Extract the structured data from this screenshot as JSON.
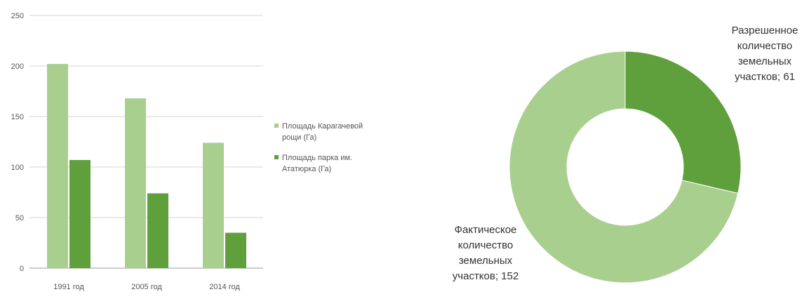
{
  "chart_data": [
    {
      "type": "bar",
      "categories": [
        "1991 год",
        "2005 год",
        "2014 год"
      ],
      "series": [
        {
          "name": "Площадь Карагачевой рощи (Га)",
          "values": [
            202,
            168,
            124
          ],
          "color": "#a9cf8f"
        },
        {
          "name": "Площадь парка им. Ататюрка (Га)",
          "values": [
            107,
            74,
            35
          ],
          "color": "#5fa03c"
        }
      ],
      "ylim": [
        0,
        250
      ],
      "yticks": [
        0,
        50,
        100,
        150,
        200,
        250
      ],
      "grid": true,
      "legend": "right"
    },
    {
      "type": "pie",
      "variant": "donut",
      "slices": [
        {
          "label": "Разрешенное количество земельных участков",
          "value": 61,
          "display": [
            "Разрешенное",
            "количество",
            "земельных",
            "участков; 61"
          ],
          "color": "#5fa03c"
        },
        {
          "label": "Фактическое количество земельных участков",
          "value": 152,
          "display": [
            "Фактическое",
            "количество",
            "земельных",
            "участков; 152"
          ],
          "color": "#a9cf8f"
        }
      ]
    }
  ]
}
